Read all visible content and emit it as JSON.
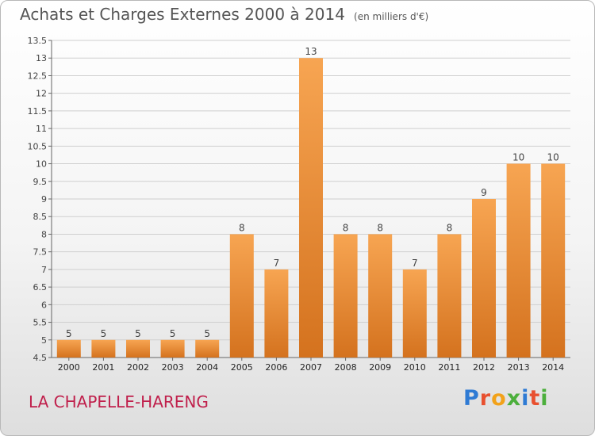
{
  "title": "Achats et Charges Externes 2000 à 2014",
  "unit_note": "(en milliers d'€)",
  "place": "LA CHAPELLE-HARENG",
  "logo": {
    "letters": [
      "P",
      "r",
      "o",
      "x",
      "i",
      "t",
      "i"
    ],
    "colors": [
      "#2f7bd4",
      "#e8502f",
      "#f2a21a",
      "#4caf3c",
      "#2f7bd4",
      "#e8502f",
      "#4caf3c"
    ]
  },
  "colors": {
    "bar_light": "#f7a552",
    "bar_dark": "#d4721e",
    "grid": "#cfcfcf"
  },
  "chart_data": {
    "type": "bar",
    "categories": [
      "2000",
      "2001",
      "2002",
      "2003",
      "2004",
      "2005",
      "2006",
      "2007",
      "2008",
      "2009",
      "2010",
      "2011",
      "2012",
      "2013",
      "2014"
    ],
    "values": [
      5,
      5,
      5,
      5,
      5,
      8,
      7,
      13,
      8,
      8,
      7,
      8,
      9,
      10,
      10
    ],
    "ylim": [
      4.5,
      13.5
    ],
    "yticks": [
      "4.5",
      "5",
      "5.5",
      "6",
      "6.5",
      "7",
      "7.5",
      "8",
      "8.5",
      "9",
      "9.5",
      "10",
      "10.5",
      "11",
      "11.5",
      "12",
      "12.5",
      "13",
      "13.5"
    ],
    "grid": "horizontal",
    "legend": "none"
  }
}
